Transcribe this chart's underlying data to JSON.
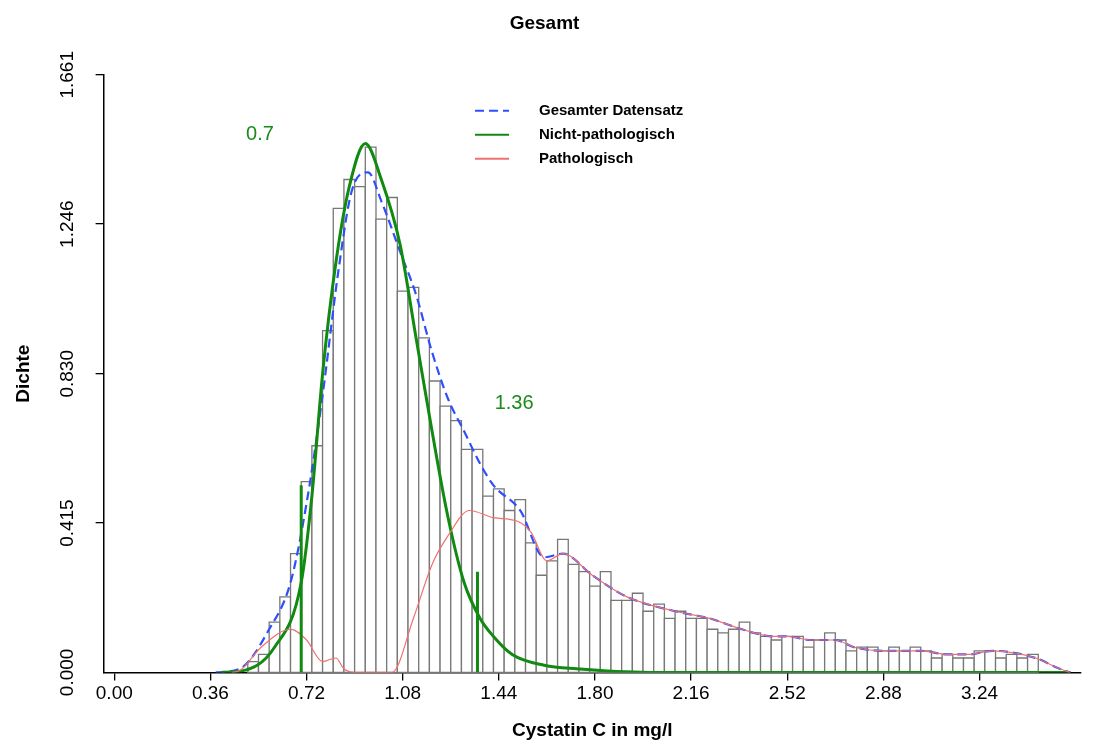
{
  "chart_data": {
    "type": "histogram",
    "title": "Gesamt",
    "xlabel": "Cystatin C in mg/l",
    "ylabel": "Dichte",
    "bins": [
      0.5,
      0.54,
      0.58,
      0.62,
      0.66,
      0.7,
      0.74,
      0.78,
      0.82,
      0.86,
      0.9,
      0.94,
      0.98,
      1.02,
      1.06,
      1.1,
      1.14,
      1.18,
      1.22,
      1.26,
      1.3,
      1.34,
      1.38,
      1.42,
      1.46,
      1.5,
      1.54,
      1.58,
      1.62,
      1.66,
      1.7,
      1.74,
      1.78,
      1.82,
      1.86,
      1.9,
      1.94,
      1.98,
      2.02,
      2.06,
      2.1,
      2.14,
      2.18,
      2.22,
      2.26,
      2.3,
      2.34,
      2.38,
      2.42,
      2.46,
      2.5,
      2.54,
      2.58,
      2.62,
      2.66,
      2.7,
      2.74,
      2.78,
      2.82,
      2.86,
      2.9,
      2.94,
      2.98,
      3.02,
      3.06,
      3.1,
      3.14,
      3.18,
      3.22,
      3.26,
      3.3,
      3.34,
      3.38,
      3.42,
      3.46
    ],
    "values": [
      0.03,
      0.05,
      0.14,
      0.21,
      0.33,
      0.53,
      0.63,
      0.95,
      1.29,
      1.37,
      1.35,
      1.46,
      1.26,
      1.32,
      1.06,
      1.07,
      0.93,
      0.81,
      0.74,
      0.7,
      0.62,
      0.62,
      0.49,
      0.51,
      0.45,
      0.48,
      0.36,
      0.27,
      0.31,
      0.37,
      0.3,
      0.28,
      0.24,
      0.28,
      0.2,
      0.2,
      0.22,
      0.17,
      0.19,
      0.15,
      0.17,
      0.15,
      0.15,
      0.12,
      0.11,
      0.12,
      0.14,
      0.11,
      0.1,
      0.09,
      0.1,
      0.1,
      0.07,
      0.09,
      0.11,
      0.09,
      0.06,
      0.07,
      0.07,
      0.06,
      0.07,
      0.06,
      0.07,
      0.06,
      0.04,
      0.05,
      0.04,
      0.04,
      0.06,
      0.06,
      0.04,
      0.05,
      0.04,
      0.05
    ],
    "series": [
      {
        "type": "line",
        "name": "Gesamter Datensatz",
        "color": "#2f4fff",
        "line_style": "dashed",
        "x": [
          0.38,
          0.47,
          0.58,
          0.66,
          0.72,
          0.78,
          0.84,
          0.89,
          0.95,
          1.0,
          1.07,
          1.13,
          1.19,
          1.25,
          1.31,
          1.37,
          1.42,
          1.52,
          1.61,
          1.68,
          1.79,
          1.92,
          2.1,
          2.23,
          2.35,
          2.47,
          2.52,
          2.61,
          2.7,
          2.77,
          2.89,
          3.02,
          3.12,
          3.2,
          3.29,
          3.45,
          3.54,
          3.58
        ],
        "values": [
          0,
          0.01,
          0.12,
          0.25,
          0.47,
          0.77,
          1.12,
          1.34,
          1.39,
          1.31,
          1.17,
          1.05,
          0.89,
          0.76,
          0.67,
          0.58,
          0.52,
          0.45,
          0.32,
          0.33,
          0.27,
          0.21,
          0.17,
          0.15,
          0.12,
          0.1,
          0.1,
          0.09,
          0.09,
          0.07,
          0.06,
          0.06,
          0.05,
          0.05,
          0.06,
          0.04,
          0.01,
          0
        ]
      },
      {
        "type": "line",
        "name": "Nicht-pathologisch",
        "color": "#118a11",
        "line_style": "solid",
        "x": [
          0.4,
          0.47,
          0.6,
          0.7,
          0.74,
          0.78,
          0.83,
          0.88,
          0.94,
          1.0,
          1.07,
          1.13,
          1.19,
          1.25,
          1.31,
          1.37,
          1.42,
          1.49,
          1.61,
          1.73,
          2.0,
          3.58
        ],
        "values": [
          0,
          0.003,
          0.07,
          0.25,
          0.49,
          0.83,
          1.14,
          1.35,
          1.47,
          1.37,
          1.19,
          0.93,
          0.67,
          0.43,
          0.25,
          0.15,
          0.1,
          0.05,
          0.02,
          0.01,
          0,
          0
        ]
      },
      {
        "type": "line",
        "name": "Pathologisch",
        "color": "#f07070",
        "line_style": "solid",
        "x": [
          0.44,
          0.47,
          0.55,
          0.66,
          0.72,
          0.78,
          0.83,
          0.86,
          0.9,
          1.04,
          1.12,
          1.19,
          1.25,
          1.33,
          1.42,
          1.51,
          1.56,
          1.62,
          1.68,
          1.79,
          1.92,
          2.1,
          2.23,
          2.35,
          2.47,
          2.52,
          2.61,
          2.7,
          2.77,
          2.89,
          3.02,
          3.12,
          3.2,
          3.29,
          3.45,
          3.54,
          3.58
        ],
        "values": [
          0,
          0.005,
          0.07,
          0.12,
          0.09,
          0.03,
          0.04,
          0.01,
          0,
          0,
          0.15,
          0.3,
          0.38,
          0.45,
          0.43,
          0.42,
          0.39,
          0.31,
          0.33,
          0.27,
          0.21,
          0.17,
          0.15,
          0.12,
          0.1,
          0.1,
          0.09,
          0.09,
          0.07,
          0.06,
          0.06,
          0.05,
          0.05,
          0.06,
          0.04,
          0.01,
          0
        ]
      },
      {
        "type": "line",
        "color": "#118a11",
        "x": [
          0.7,
          0.7
        ],
        "values": [
          0,
          0.52
        ]
      },
      {
        "type": "line",
        "color": "#118a11",
        "x": [
          1.36,
          1.36
        ],
        "values": [
          0,
          0.28
        ]
      }
    ],
    "annotations": [
      "0.7",
      "1.36"
    ],
    "xlim": [
      -0.04,
      3.62
    ],
    "xticks": [
      {
        "value": 0,
        "label": "0.00"
      },
      0.36,
      0.72,
      1.08,
      1.44,
      {
        "value": 1.8,
        "label": "1.80"
      },
      2.16,
      2.52,
      2.88,
      3.24
    ],
    "ylim": [
      0,
      1.661
    ],
    "yticks": [
      {
        "value": 0,
        "label": "0.000"
      },
      0.415,
      {
        "value": 0.83,
        "label": "0.830"
      },
      1.246,
      1.661
    ],
    "grid": false,
    "legend": "top"
  }
}
